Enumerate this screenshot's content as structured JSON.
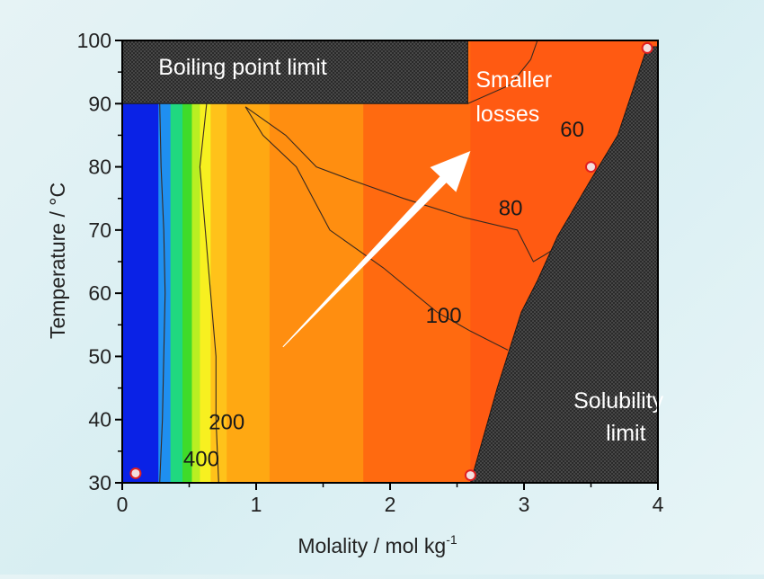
{
  "chart_data": {
    "type": "heatmap",
    "title": "",
    "xlabel": "Molality / mol kg",
    "xlabel_sup": "-1",
    "ylabel": "Temperature / °C",
    "xlim": [
      0,
      4
    ],
    "ylim": [
      30,
      100
    ],
    "x_ticks": [
      "0",
      "1",
      "2",
      "3",
      "4"
    ],
    "y_ticks": [
      "30",
      "40",
      "50",
      "60",
      "70",
      "80",
      "90",
      "100"
    ],
    "grid": false,
    "legend": "none",
    "color_bands": [
      {
        "x_from": 0.0,
        "x_to": 0.27,
        "color": "#0a22e6"
      },
      {
        "x_from": 0.27,
        "x_to": 0.36,
        "color": "#1f8ff0"
      },
      {
        "x_from": 0.36,
        "x_to": 0.45,
        "color": "#20d880"
      },
      {
        "x_from": 0.45,
        "x_to": 0.52,
        "color": "#3fdb2a"
      },
      {
        "x_from": 0.52,
        "x_to": 0.58,
        "color": "#b9ef22"
      },
      {
        "x_from": 0.58,
        "x_to": 0.66,
        "color": "#f7f020"
      },
      {
        "x_from": 0.66,
        "x_to": 0.78,
        "color": "#ffc21a"
      },
      {
        "x_from": 0.78,
        "x_to": 1.1,
        "color": "#ffa812"
      },
      {
        "x_from": 1.1,
        "x_to": 1.8,
        "color": "#ff8e10"
      },
      {
        "x_from": 1.8,
        "x_to": 2.6,
        "color": "#ff6a10"
      },
      {
        "x_from": 2.6,
        "x_to": 4.0,
        "color": "#ff5a12"
      }
    ],
    "contours": [
      {
        "label": "400",
        "label_at": [
          0.59,
          32.6
        ],
        "points": [
          [
            0.28,
            30
          ],
          [
            0.3,
            40
          ],
          [
            0.31,
            50
          ],
          [
            0.32,
            60
          ],
          [
            0.31,
            70
          ],
          [
            0.29,
            80
          ],
          [
            0.28,
            90
          ]
        ]
      },
      {
        "label": "200",
        "label_at": [
          0.78,
          38.5
        ],
        "points": [
          [
            0.72,
            30
          ],
          [
            0.7,
            40
          ],
          [
            0.7,
            50
          ],
          [
            0.66,
            60
          ],
          [
            0.62,
            70
          ],
          [
            0.58,
            80
          ],
          [
            0.63,
            90
          ]
        ]
      },
      {
        "label": "100",
        "label_at": [
          2.4,
          55.3
        ],
        "points": [
          [
            0.92,
            89.5
          ],
          [
            1.05,
            85
          ],
          [
            1.3,
            80
          ],
          [
            1.55,
            70
          ],
          [
            1.95,
            64
          ],
          [
            2.35,
            57
          ],
          [
            2.6,
            54
          ],
          [
            2.88,
            51
          ]
        ]
      },
      {
        "label": "80",
        "label_at": [
          2.9,
          72.3
        ],
        "points": [
          [
            0.92,
            89.5
          ],
          [
            1.22,
            85
          ],
          [
            1.45,
            80
          ],
          [
            1.7,
            78
          ],
          [
            2.1,
            75
          ],
          [
            2.55,
            72
          ],
          [
            2.95,
            70
          ],
          [
            3.07,
            65
          ],
          [
            3.15,
            66
          ],
          [
            3.3,
            68
          ]
        ]
      },
      {
        "label": "60",
        "label_at": [
          3.36,
          84.8
        ],
        "points": [
          [
            2.58,
            90
          ],
          [
            2.9,
            93
          ],
          [
            3.05,
            97
          ],
          [
            3.1,
            100
          ]
        ]
      }
    ],
    "regions": [
      {
        "name": "boiling-point-limit",
        "label": "Boiling point limit",
        "label_at": [
          0.27,
          94.6
        ],
        "polygon": [
          [
            0,
            90
          ],
          [
            2.58,
            90
          ],
          [
            2.58,
            100
          ],
          [
            0,
            100
          ]
        ]
      },
      {
        "name": "solubility-limit",
        "label_lines": [
          "Solubility",
          "limit"
        ],
        "label_at": [
          3.37,
          41.8
        ],
        "polygon": [
          [
            2.6,
            30
          ],
          [
            2.8,
            45
          ],
          [
            2.98,
            57
          ],
          [
            3.1,
            62
          ],
          [
            3.25,
            69
          ],
          [
            3.5,
            78
          ],
          [
            3.7,
            85
          ],
          [
            3.92,
            99
          ],
          [
            4.0,
            99
          ],
          [
            4.0,
            30
          ]
        ]
      }
    ],
    "feasible_region": [
      [
        0.0,
        30
      ],
      [
        2.6,
        30
      ],
      [
        2.8,
        45
      ],
      [
        2.98,
        57
      ],
      [
        3.1,
        62
      ],
      [
        3.25,
        69
      ],
      [
        3.5,
        78
      ],
      [
        3.7,
        85
      ],
      [
        3.92,
        99
      ],
      [
        3.94,
        100
      ],
      [
        0,
        100
      ]
    ],
    "points": [
      [
        0.1,
        31.5
      ],
      [
        2.6,
        31.2
      ],
      [
        3.5,
        80.0
      ],
      [
        3.92,
        98.8
      ]
    ],
    "arrow": {
      "from": [
        1.2,
        51.5
      ],
      "to": [
        2.6,
        82.5
      ],
      "label_lines": [
        "Smaller",
        "losses"
      ],
      "label_at": [
        2.64,
        92.6
      ]
    }
  }
}
